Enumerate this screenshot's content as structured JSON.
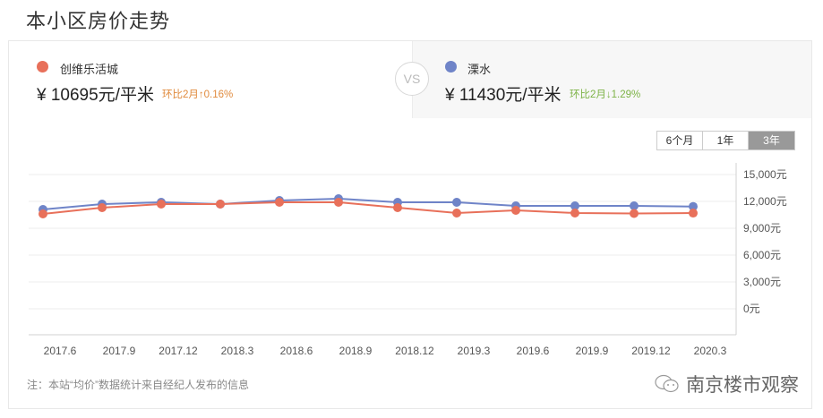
{
  "page_title": "本小区房价走势",
  "compare": {
    "a": {
      "name": "创维乐活城",
      "price": "¥ 10695元/平米",
      "change": "环比2月↑0.16%",
      "dot_color": "#e8705a",
      "change_color": "#e08a3c"
    },
    "vs_label": "VS",
    "b": {
      "name": "溧水",
      "price": "¥ 11430元/平米",
      "change": "环比2月↓1.29%",
      "dot_color": "#6f84c8",
      "change_color": "#7db347"
    }
  },
  "range_tabs": [
    {
      "label": "6个月",
      "active": false
    },
    {
      "label": "1年",
      "active": false
    },
    {
      "label": "3年",
      "active": true
    }
  ],
  "note": "注：本站“均价”数据统计来自经纪人发布的信息",
  "watermark": "南京楼市观察",
  "chart_data": {
    "type": "line",
    "title": "本小区房价走势",
    "categories": [
      "2017.6",
      "2017.9",
      "2017.12",
      "2018.3",
      "2018.6",
      "2018.9",
      "2018.12",
      "2019.3",
      "2019.6",
      "2019.9",
      "2019.12",
      "2020.3"
    ],
    "series": [
      {
        "name": "创维乐活城",
        "color": "#e8705a",
        "values": [
          10600,
          11300,
          11700,
          11700,
          11900,
          11900,
          11300,
          10700,
          11000,
          10700,
          10650,
          10695
        ]
      },
      {
        "name": "溧水",
        "color": "#6f84c8",
        "values": [
          11100,
          11700,
          11900,
          11700,
          12100,
          12300,
          11900,
          11900,
          11500,
          11500,
          11500,
          11430
        ]
      }
    ],
    "yticks": [
      "15,000元",
      "12,000元",
      "9,000元",
      "6,000元",
      "3,000元",
      "0元"
    ],
    "ytick_values": [
      15000,
      12000,
      9000,
      6000,
      3000,
      0
    ],
    "ylim": [
      0,
      15000
    ],
    "y_axis_position": "right",
    "grid": true,
    "xlabel": "",
    "ylabel": ""
  }
}
